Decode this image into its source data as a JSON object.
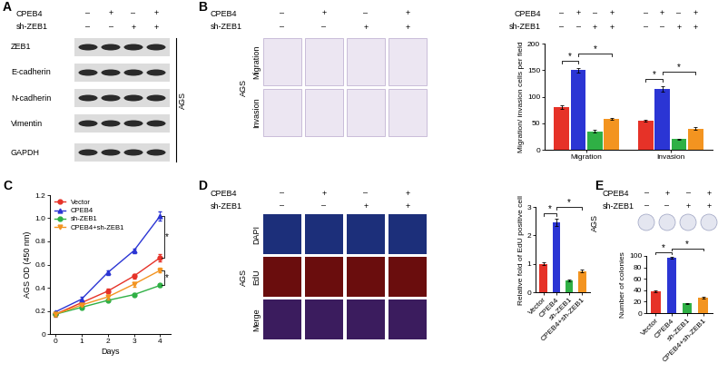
{
  "panels": {
    "A": {
      "letter": "A",
      "conditions": [
        {
          "name": "CPEB4",
          "marks": [
            "–",
            "+",
            "–",
            "+"
          ]
        },
        {
          "name": "sh-ZEB1",
          "marks": [
            "–",
            "–",
            "+",
            "+"
          ]
        }
      ],
      "bands": [
        "ZEB1",
        "E-cadherin",
        "N-cadherin",
        "Vimentin",
        "GAPDH"
      ],
      "cell_line": "AGS"
    },
    "B": {
      "letter": "B",
      "conditions": [
        {
          "name": "CPEB4",
          "marks": [
            "–",
            "+",
            "–",
            "+"
          ]
        },
        {
          "name": "sh-ZEB1",
          "marks": [
            "–",
            "–",
            "+",
            "+"
          ]
        }
      ],
      "image_rows": [
        "Migration",
        "Invasion"
      ],
      "cell_line": "AGS"
    },
    "C": {
      "letter": "C"
    },
    "D": {
      "letter": "D",
      "conditions": [
        {
          "name": "CPEB4",
          "marks": [
            "–",
            "+",
            "–",
            "+"
          ]
        },
        {
          "name": "sh-ZEB1",
          "marks": [
            "–",
            "–",
            "+",
            "+"
          ]
        }
      ],
      "image_rows": [
        "DAPI",
        "EdU",
        "Merge"
      ],
      "cell_line": "AGS"
    },
    "E": {
      "letter": "E",
      "conditions": [
        {
          "name": "CPEB4",
          "marks": [
            "–",
            "+",
            "–",
            "+"
          ]
        },
        {
          "name": "sh-ZEB1",
          "marks": [
            "–",
            "–",
            "+",
            "+"
          ]
        }
      ],
      "cell_line": "AGS"
    }
  },
  "chart_data": [
    {
      "type": "bar",
      "categories": [
        "Migration",
        "Invasion"
      ],
      "y_label": "Migration/ invasion cells per field",
      "ylim": [
        0,
        200
      ],
      "yticks": [
        0,
        50,
        100,
        150,
        200
      ],
      "conditions": [
        {
          "name": "CPEB4",
          "marks": [
            "–",
            "+",
            "–",
            "+",
            "–",
            "+",
            "–",
            "+"
          ]
        },
        {
          "name": "sh-ZEB1",
          "marks": [
            "–",
            "–",
            "+",
            "+",
            "–",
            "–",
            "+",
            "+"
          ]
        }
      ],
      "series": [
        {
          "color": "#e63228",
          "values": [
            80,
            55
          ],
          "error": [
            3,
            2
          ]
        },
        {
          "color": "#2b35d4",
          "values": [
            150,
            115
          ],
          "error": [
            4,
            5
          ]
        },
        {
          "color": "#2fb045",
          "values": [
            35,
            20
          ],
          "error": [
            2,
            1
          ]
        },
        {
          "color": "#f39420",
          "values": [
            58,
            40
          ],
          "error": [
            2,
            2
          ]
        }
      ],
      "annotations": [
        {
          "text": "*",
          "category": 0,
          "pair": [
            0,
            1
          ]
        },
        {
          "text": "*",
          "category": 0,
          "pair": [
            1,
            3
          ]
        },
        {
          "text": "*",
          "category": 1,
          "pair": [
            0,
            1
          ]
        },
        {
          "text": "*",
          "category": 1,
          "pair": [
            1,
            3
          ]
        }
      ]
    },
    {
      "type": "line",
      "x": [
        0,
        1,
        2,
        3,
        4
      ],
      "x_label": "Days",
      "y_label": "AGS OD (450 nm)",
      "xlim": [
        -0.2,
        4.4
      ],
      "xticks": [
        0,
        1,
        2,
        3,
        4
      ],
      "ylim": [
        0,
        1.2
      ],
      "yticks": [
        0,
        0.2,
        0.4,
        0.6,
        0.8,
        {
          "value": 1,
          "label": "1.0"
        },
        1.2
      ],
      "legend": "upper left",
      "series": [
        {
          "name": "Vector",
          "color": "#e63228",
          "marker": "circle",
          "values": [
            0.17,
            0.27,
            0.37,
            0.5,
            0.66
          ],
          "error": [
            0.02,
            0.01,
            0.02,
            0.02,
            0.03
          ]
        },
        {
          "name": "CPEB4",
          "color": "#2b35d4",
          "marker": "triangle_up",
          "values": [
            0.19,
            0.3,
            0.53,
            0.72,
            1.02
          ],
          "error": [
            0.01,
            0.02,
            0.02,
            0.02,
            0.04
          ]
        },
        {
          "name": "sh-ZEB1",
          "color": "#2fb045",
          "marker": "circle",
          "values": [
            0.17,
            0.23,
            0.29,
            0.34,
            0.42
          ],
          "error": [
            0.01,
            0.01,
            0.01,
            0.01,
            0.01
          ]
        },
        {
          "name": "CPEB4+sh-ZEB1",
          "color": "#f39420",
          "marker": "triangle_down",
          "values": [
            0.17,
            0.25,
            0.32,
            0.43,
            0.55
          ],
          "error": [
            0.01,
            0.01,
            0.02,
            0.02,
            0.02
          ]
        }
      ],
      "annotations": [
        {
          "text": "*",
          "pair": [
            1,
            0
          ]
        },
        {
          "text": "*",
          "pair": [
            3,
            2
          ]
        }
      ]
    },
    {
      "type": "bar",
      "categories": [
        "Vector",
        "CPEB4",
        "sh-ZEB1",
        "CPEB4+sh-ZEB1"
      ],
      "y_label": "Relative fold of EdU positive cell",
      "ylim": [
        0,
        3
      ],
      "yticks": [
        0,
        1,
        2,
        3
      ],
      "colors": [
        "#e63228",
        "#2b35d4",
        "#2fb045",
        "#f39420"
      ],
      "values": [
        1.0,
        2.45,
        0.42,
        0.75
      ],
      "error": [
        0.04,
        0.12,
        0.03,
        0.05
      ],
      "annotations": [
        {
          "text": "*",
          "pair": [
            0,
            1
          ]
        },
        {
          "text": "*",
          "pair": [
            1,
            3
          ]
        }
      ]
    },
    {
      "type": "bar",
      "categories": [
        "Vector",
        "CPEB4",
        "sh-ZEB1",
        "CPEB4+sh-ZEB1"
      ],
      "y_label": "Number of colonies",
      "ylim": [
        0,
        100
      ],
      "yticks": [
        0,
        20,
        40,
        60,
        80,
        100
      ],
      "colors": [
        "#e63228",
        "#2b35d4",
        "#2fb045",
        "#f39420"
      ],
      "values": [
        38,
        97,
        17,
        27
      ],
      "error": [
        2,
        2,
        1,
        1
      ],
      "annotations": [
        {
          "text": "*",
          "pair": [
            0,
            1
          ]
        },
        {
          "text": "*",
          "pair": [
            1,
            3
          ]
        }
      ]
    }
  ]
}
